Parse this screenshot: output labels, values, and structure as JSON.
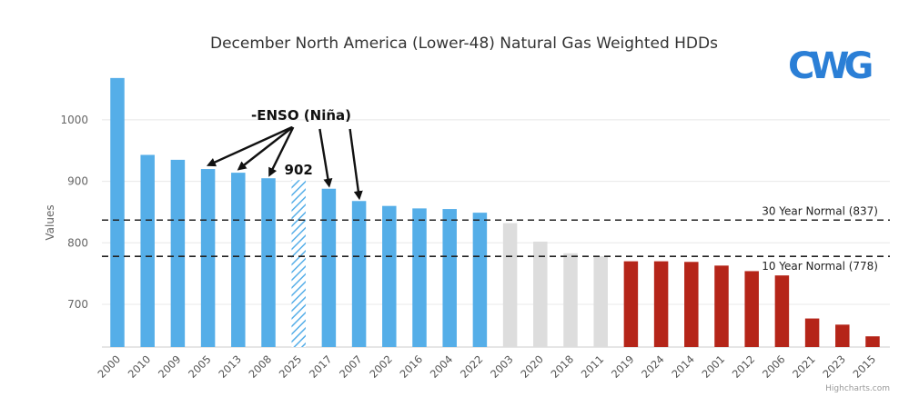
{
  "chart_data": {
    "type": "bar",
    "title": "December North America (Lower-48) Natural Gas Weighted HDDs",
    "xlabel": "",
    "ylabel": "Values",
    "ylim": [
      645,
      1075
    ],
    "yticks": [
      700,
      800,
      900,
      1000
    ],
    "grid": true,
    "categories": [
      "2000",
      "2010",
      "2009",
      "2005",
      "2013",
      "2008",
      "2025",
      "2017",
      "2007",
      "2002",
      "2016",
      "2004",
      "2022",
      "2003",
      "2020",
      "2018",
      "2011",
      "2019",
      "2024",
      "2014",
      "2001",
      "2012",
      "2006",
      "2021",
      "2023",
      "2015"
    ],
    "values": [
      1068,
      943,
      935,
      920,
      914,
      905,
      902,
      888,
      868,
      860,
      856,
      855,
      849,
      832,
      802,
      783,
      778,
      770,
      770,
      769,
      763,
      754,
      747,
      677,
      667,
      648
    ],
    "bar_groups": [
      "blue",
      "blue",
      "blue",
      "blue",
      "blue",
      "blue",
      "hatched",
      "blue",
      "blue",
      "blue",
      "blue",
      "blue",
      "blue",
      "grey",
      "grey",
      "grey",
      "grey",
      "red",
      "red",
      "red",
      "red",
      "red",
      "red",
      "red",
      "red",
      "red"
    ],
    "colors": {
      "blue": "#55aee8",
      "grey": "#dddddd",
      "red": "#b52519",
      "hatch": "#55aee8",
      "reference_line": "#222222",
      "grid": "#e8e8e8"
    },
    "reference_lines": [
      {
        "label": "30 Year Normal (837)",
        "value": 837
      },
      {
        "label": "10 Year Normal (778)",
        "value": 778
      }
    ],
    "annotations": {
      "enso_label": "-ENSO (Niña)",
      "enso_targets": [
        "2005",
        "2013",
        "2008",
        "2017",
        "2007"
      ],
      "highlight_label": "902",
      "highlight_category": "2025"
    },
    "credit": "Highcharts.com"
  },
  "logo": {
    "text": "CWG",
    "color": "#2b7fd6"
  }
}
